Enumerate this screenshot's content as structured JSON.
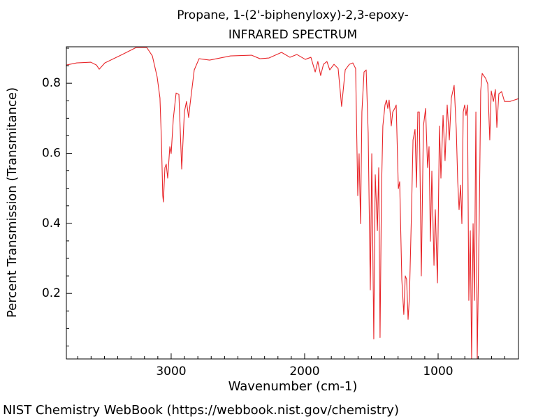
{
  "chart_data": {
    "type": "line",
    "title": "Propane, 1-(2'-biphenyloxy)-2,3-epoxy-",
    "subtitle": "INFRARED SPECTRUM",
    "x_label": "Wavenumber (cm-1)",
    "y_label": "Percent Transmission (Transmitance)",
    "source": "NIST Chemistry WebBook (https://webbook.nist.gov/chemistry)",
    "color": "#e8262a",
    "xlim": [
      3785,
      398
    ],
    "ylim": [
      0.013,
      0.904
    ],
    "xticks": [
      3000,
      2000,
      1000
    ],
    "yticks": [
      0.2,
      0.4,
      0.6,
      0.8
    ],
    "xminorticks": [
      3700,
      3600,
      3500,
      3400,
      3300,
      3200,
      3100,
      2900,
      2800,
      2700,
      2600,
      2500,
      2400,
      2300,
      2200,
      2100,
      1900,
      1800,
      1700,
      1600,
      1500,
      1400,
      1300,
      1200,
      1100,
      900,
      800,
      700,
      600,
      500
    ],
    "yminorticks": [
      0.05,
      0.1,
      0.15,
      0.25,
      0.3,
      0.35,
      0.45,
      0.5,
      0.55,
      0.65,
      0.7,
      0.75,
      0.85,
      0.9
    ],
    "x": [
      3785,
      3707,
      3602,
      3560,
      3539,
      3497,
      3366,
      3262,
      3183,
      3141,
      3105,
      3084,
      3073,
      3063,
      3058,
      3047,
      3037,
      3026,
      3010,
      3000,
      2984,
      2963,
      2942,
      2921,
      2901,
      2885,
      2869,
      2859,
      2827,
      2791,
      2712,
      2555,
      2398,
      2335,
      2267,
      2173,
      2110,
      2058,
      1995,
      1953,
      1921,
      1901,
      1880,
      1859,
      1833,
      1812,
      1780,
      1749,
      1723,
      1696,
      1665,
      1639,
      1618,
      1602,
      1592,
      1581,
      1571,
      1555,
      1539,
      1524,
      1508,
      1497,
      1482,
      1471,
      1455,
      1445,
      1435,
      1424,
      1414,
      1398,
      1387,
      1377,
      1367,
      1351,
      1340,
      1325,
      1314,
      1298,
      1288,
      1272,
      1257,
      1246,
      1236,
      1225,
      1215,
      1199,
      1188,
      1173,
      1162,
      1152,
      1141,
      1126,
      1110,
      1094,
      1079,
      1068,
      1058,
      1047,
      1031,
      1021,
      1005,
      990,
      979,
      963,
      948,
      932,
      916,
      901,
      880,
      864,
      853,
      843,
      832,
      822,
      812,
      801,
      791,
      780,
      770,
      759,
      749,
      738,
      728,
      717,
      707,
      691,
      681,
      670,
      644,
      628,
      613,
      602,
      586,
      571,
      560,
      545,
      524,
      503,
      461,
      398
    ],
    "values": [
      0.852,
      0.858,
      0.86,
      0.852,
      0.84,
      0.858,
      0.882,
      0.902,
      0.902,
      0.878,
      0.818,
      0.758,
      0.638,
      0.479,
      0.461,
      0.559,
      0.569,
      0.529,
      0.619,
      0.599,
      0.698,
      0.772,
      0.768,
      0.555,
      0.718,
      0.748,
      0.702,
      0.738,
      0.838,
      0.87,
      0.866,
      0.878,
      0.88,
      0.87,
      0.872,
      0.888,
      0.874,
      0.882,
      0.868,
      0.874,
      0.832,
      0.862,
      0.822,
      0.854,
      0.862,
      0.838,
      0.854,
      0.842,
      0.734,
      0.838,
      0.854,
      0.858,
      0.842,
      0.479,
      0.599,
      0.399,
      0.718,
      0.832,
      0.838,
      0.658,
      0.21,
      0.599,
      0.07,
      0.539,
      0.379,
      0.559,
      0.074,
      0.499,
      0.678,
      0.738,
      0.752,
      0.728,
      0.752,
      0.678,
      0.718,
      0.728,
      0.738,
      0.499,
      0.519,
      0.24,
      0.14,
      0.25,
      0.24,
      0.126,
      0.19,
      0.439,
      0.638,
      0.668,
      0.503,
      0.718,
      0.718,
      0.25,
      0.678,
      0.728,
      0.559,
      0.619,
      0.349,
      0.549,
      0.28,
      0.439,
      0.23,
      0.678,
      0.529,
      0.708,
      0.579,
      0.738,
      0.638,
      0.758,
      0.794,
      0.668,
      0.519,
      0.439,
      0.509,
      0.399,
      0.718,
      0.738,
      0.708,
      0.738,
      0.18,
      0.379,
      0.013,
      0.399,
      0.18,
      0.718,
      0.013,
      0.439,
      0.778,
      0.828,
      0.814,
      0.798,
      0.638,
      0.778,
      0.748,
      0.782,
      0.674,
      0.77,
      0.776,
      0.748,
      0.748,
      0.756
    ]
  }
}
